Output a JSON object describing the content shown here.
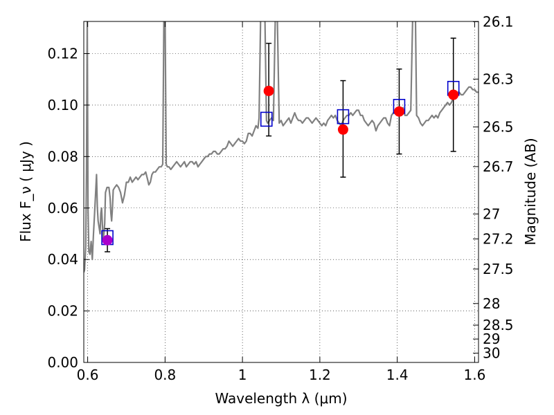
{
  "chart_data": {
    "type": "scatter",
    "xlabel": "Wavelength  λ (μm)",
    "ylabel": "Flux  F_ν  ( μJy )",
    "y2label": "Magnitude (AB)",
    "xlim": [
      0.59,
      1.61
    ],
    "ylim": [
      0.0,
      0.1325
    ],
    "grid": true,
    "x_ticks": [
      0.6,
      0.8,
      1.0,
      1.2,
      1.4,
      1.6
    ],
    "x_tick_labels": [
      "0.6",
      "0.8",
      "1",
      "1.2",
      "1.4",
      "1.6"
    ],
    "y_ticks": [
      0.0,
      0.02,
      0.04,
      0.06,
      0.08,
      0.1,
      0.12
    ],
    "y_tick_labels": [
      "0.00",
      "0.02",
      "0.04",
      "0.06",
      "0.08",
      "0.10",
      "0.12"
    ],
    "y2_ticks": [
      {
        "label": "26.1",
        "flux": 0.1324
      },
      {
        "label": "26.3",
        "flux": 0.1101
      },
      {
        "label": "26.5",
        "flux": 0.0915
      },
      {
        "label": "26.7",
        "flux": 0.0761
      },
      {
        "label": "27",
        "flux": 0.0577
      },
      {
        "label": "27.2",
        "flux": 0.048
      },
      {
        "label": "27.5",
        "flux": 0.0363
      },
      {
        "label": "28",
        "flux": 0.0229
      },
      {
        "label": "28.5",
        "flux": 0.0145
      },
      {
        "label": "29",
        "flux": 0.0091
      },
      {
        "label": "30",
        "flux": 0.0036
      }
    ],
    "series": [
      {
        "kind": "model-spectrum",
        "color": "#808080",
        "points": [
          [
            0.59,
            0.035
          ],
          [
            0.592,
            0.036
          ],
          [
            0.595,
            0.045
          ],
          [
            0.597,
            0.075
          ],
          [
            0.599,
            0.135
          ],
          [
            0.601,
            0.06
          ],
          [
            0.603,
            0.043
          ],
          [
            0.606,
            0.042
          ],
          [
            0.609,
            0.047
          ],
          [
            0.612,
            0.04
          ],
          [
            0.615,
            0.05
          ],
          [
            0.618,
            0.058
          ],
          [
            0.621,
            0.067
          ],
          [
            0.623,
            0.073
          ],
          [
            0.625,
            0.06
          ],
          [
            0.627,
            0.055
          ],
          [
            0.63,
            0.052
          ],
          [
            0.632,
            0.05
          ],
          [
            0.634,
            0.058
          ],
          [
            0.636,
            0.06
          ],
          [
            0.638,
            0.054
          ],
          [
            0.64,
            0.048
          ],
          [
            0.642,
            0.05
          ],
          [
            0.644,
            0.054
          ],
          [
            0.646,
            0.066
          ],
          [
            0.65,
            0.068
          ],
          [
            0.655,
            0.068
          ],
          [
            0.658,
            0.064
          ],
          [
            0.66,
            0.058
          ],
          [
            0.662,
            0.055
          ],
          [
            0.664,
            0.06
          ],
          [
            0.666,
            0.067
          ],
          [
            0.67,
            0.068
          ],
          [
            0.675,
            0.069
          ],
          [
            0.68,
            0.068
          ],
          [
            0.685,
            0.066
          ],
          [
            0.69,
            0.062
          ],
          [
            0.695,
            0.065
          ],
          [
            0.7,
            0.07
          ],
          [
            0.705,
            0.07
          ],
          [
            0.71,
            0.072
          ],
          [
            0.715,
            0.07
          ],
          [
            0.72,
            0.071
          ],
          [
            0.725,
            0.072
          ],
          [
            0.73,
            0.071
          ],
          [
            0.735,
            0.072
          ],
          [
            0.74,
            0.073
          ],
          [
            0.745,
            0.073
          ],
          [
            0.75,
            0.074
          ],
          [
            0.755,
            0.071
          ],
          [
            0.758,
            0.069
          ],
          [
            0.762,
            0.07
          ],
          [
            0.766,
            0.073
          ],
          [
            0.77,
            0.074
          ],
          [
            0.775,
            0.074
          ],
          [
            0.78,
            0.075
          ],
          [
            0.785,
            0.076
          ],
          [
            0.79,
            0.076
          ],
          [
            0.794,
            0.077
          ],
          [
            0.797,
            0.135
          ],
          [
            0.8,
            0.135
          ],
          [
            0.803,
            0.077
          ],
          [
            0.806,
            0.076
          ],
          [
            0.81,
            0.076
          ],
          [
            0.815,
            0.075
          ],
          [
            0.82,
            0.076
          ],
          [
            0.825,
            0.077
          ],
          [
            0.83,
            0.078
          ],
          [
            0.835,
            0.077
          ],
          [
            0.84,
            0.076
          ],
          [
            0.845,
            0.077
          ],
          [
            0.85,
            0.078
          ],
          [
            0.855,
            0.076
          ],
          [
            0.86,
            0.077
          ],
          [
            0.865,
            0.078
          ],
          [
            0.87,
            0.078
          ],
          [
            0.875,
            0.077
          ],
          [
            0.88,
            0.078
          ],
          [
            0.885,
            0.076
          ],
          [
            0.89,
            0.077
          ],
          [
            0.895,
            0.078
          ],
          [
            0.9,
            0.079
          ],
          [
            0.905,
            0.08
          ],
          [
            0.91,
            0.08
          ],
          [
            0.915,
            0.081
          ],
          [
            0.92,
            0.081
          ],
          [
            0.925,
            0.082
          ],
          [
            0.93,
            0.082
          ],
          [
            0.935,
            0.081
          ],
          [
            0.94,
            0.081
          ],
          [
            0.945,
            0.082
          ],
          [
            0.95,
            0.083
          ],
          [
            0.955,
            0.083
          ],
          [
            0.96,
            0.084
          ],
          [
            0.965,
            0.086
          ],
          [
            0.97,
            0.085
          ],
          [
            0.975,
            0.084
          ],
          [
            0.98,
            0.085
          ],
          [
            0.985,
            0.086
          ],
          [
            0.99,
            0.087
          ],
          [
            0.995,
            0.086
          ],
          [
            1.0,
            0.086
          ],
          [
            1.005,
            0.085
          ],
          [
            1.01,
            0.086
          ],
          [
            1.015,
            0.089
          ],
          [
            1.02,
            0.089
          ],
          [
            1.025,
            0.088
          ],
          [
            1.03,
            0.09
          ],
          [
            1.035,
            0.092
          ],
          [
            1.04,
            0.091
          ],
          [
            1.043,
            0.095
          ],
          [
            1.047,
            0.135
          ],
          [
            1.058,
            0.135
          ],
          [
            1.062,
            0.094
          ],
          [
            1.065,
            0.093
          ],
          [
            1.07,
            0.094
          ],
          [
            1.075,
            0.095
          ],
          [
            1.08,
            0.094
          ],
          [
            1.085,
            0.135
          ],
          [
            1.09,
            0.135
          ],
          [
            1.095,
            0.093
          ],
          [
            1.1,
            0.094
          ],
          [
            1.105,
            0.092
          ],
          [
            1.11,
            0.093
          ],
          [
            1.115,
            0.094
          ],
          [
            1.12,
            0.095
          ],
          [
            1.125,
            0.093
          ],
          [
            1.13,
            0.095
          ],
          [
            1.135,
            0.097
          ],
          [
            1.14,
            0.095
          ],
          [
            1.145,
            0.094
          ],
          [
            1.15,
            0.094
          ],
          [
            1.155,
            0.093
          ],
          [
            1.16,
            0.094
          ],
          [
            1.165,
            0.095
          ],
          [
            1.17,
            0.095
          ],
          [
            1.175,
            0.094
          ],
          [
            1.18,
            0.093
          ],
          [
            1.185,
            0.094
          ],
          [
            1.19,
            0.095
          ],
          [
            1.195,
            0.094
          ],
          [
            1.2,
            0.093
          ],
          [
            1.205,
            0.092
          ],
          [
            1.21,
            0.093
          ],
          [
            1.215,
            0.092
          ],
          [
            1.22,
            0.094
          ],
          [
            1.225,
            0.095
          ],
          [
            1.23,
            0.096
          ],
          [
            1.235,
            0.095
          ],
          [
            1.24,
            0.096
          ],
          [
            1.245,
            0.094
          ],
          [
            1.25,
            0.093
          ],
          [
            1.255,
            0.092
          ],
          [
            1.26,
            0.094
          ],
          [
            1.265,
            0.095
          ],
          [
            1.27,
            0.096
          ],
          [
            1.275,
            0.096
          ],
          [
            1.28,
            0.097
          ],
          [
            1.285,
            0.096
          ],
          [
            1.29,
            0.097
          ],
          [
            1.295,
            0.098
          ],
          [
            1.3,
            0.098
          ],
          [
            1.305,
            0.096
          ],
          [
            1.31,
            0.096
          ],
          [
            1.315,
            0.094
          ],
          [
            1.32,
            0.093
          ],
          [
            1.325,
            0.092
          ],
          [
            1.33,
            0.093
          ],
          [
            1.335,
            0.094
          ],
          [
            1.34,
            0.093
          ],
          [
            1.345,
            0.09
          ],
          [
            1.35,
            0.092
          ],
          [
            1.355,
            0.093
          ],
          [
            1.36,
            0.094
          ],
          [
            1.365,
            0.095
          ],
          [
            1.37,
            0.095
          ],
          [
            1.375,
            0.093
          ],
          [
            1.38,
            0.092
          ],
          [
            1.385,
            0.096
          ],
          [
            1.39,
            0.097
          ],
          [
            1.395,
            0.098
          ],
          [
            1.4,
            0.098
          ],
          [
            1.405,
            0.097
          ],
          [
            1.41,
            0.096
          ],
          [
            1.415,
            0.099
          ],
          [
            1.42,
            0.096
          ],
          [
            1.425,
            0.096
          ],
          [
            1.43,
            0.097
          ],
          [
            1.435,
            0.098
          ],
          [
            1.44,
            0.135
          ],
          [
            1.447,
            0.135
          ],
          [
            1.45,
            0.096
          ],
          [
            1.455,
            0.095
          ],
          [
            1.46,
            0.093
          ],
          [
            1.465,
            0.092
          ],
          [
            1.47,
            0.093
          ],
          [
            1.475,
            0.094
          ],
          [
            1.48,
            0.094
          ],
          [
            1.485,
            0.095
          ],
          [
            1.49,
            0.096
          ],
          [
            1.495,
            0.095
          ],
          [
            1.5,
            0.096
          ],
          [
            1.505,
            0.095
          ],
          [
            1.51,
            0.097
          ],
          [
            1.515,
            0.098
          ],
          [
            1.52,
            0.099
          ],
          [
            1.525,
            0.1
          ],
          [
            1.53,
            0.101
          ],
          [
            1.535,
            0.1
          ],
          [
            1.54,
            0.101
          ],
          [
            1.545,
            0.103
          ],
          [
            1.55,
            0.104
          ],
          [
            1.555,
            0.105
          ],
          [
            1.56,
            0.105
          ],
          [
            1.565,
            0.104
          ],
          [
            1.57,
            0.104
          ],
          [
            1.575,
            0.105
          ],
          [
            1.58,
            0.106
          ],
          [
            1.585,
            0.107
          ],
          [
            1.59,
            0.107
          ],
          [
            1.595,
            0.106
          ],
          [
            1.6,
            0.106
          ],
          [
            1.605,
            0.105
          ],
          [
            1.61,
            0.105
          ]
        ]
      },
      {
        "kind": "model-photometry",
        "marker": "open-square",
        "color": "#0000cc",
        "x": [
          0.651,
          1.062,
          1.26,
          1.405,
          1.545
        ],
        "y": [
          0.0485,
          0.0945,
          0.0955,
          0.0995,
          0.1065
        ]
      },
      {
        "kind": "observed-photometry",
        "marker": "filled-circle",
        "colors": [
          "#aa00cc",
          "#ff0000",
          "#ff0000",
          "#ff0000",
          "#ff0000"
        ],
        "x": [
          0.651,
          1.068,
          1.26,
          1.405,
          1.545
        ],
        "y": [
          0.0475,
          0.1055,
          0.0905,
          0.0975,
          0.104
        ],
        "yerr_low": [
          0.0045,
          0.0175,
          0.0185,
          0.0165,
          0.022
        ],
        "yerr_high": [
          0.0045,
          0.0185,
          0.019,
          0.0165,
          0.022
        ]
      }
    ]
  }
}
